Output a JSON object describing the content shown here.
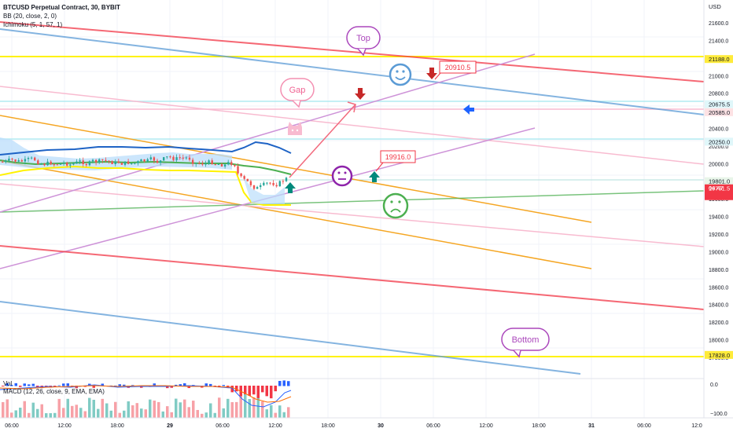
{
  "chart": {
    "symbol": "BTCUSD Perpetual Contract, 30, BYBIT",
    "bb_label": "BB (20, close, 2, 0)",
    "ichimoku_label": "Ichimoku (5, 1, 57, 1)",
    "vol_label": "Vol",
    "macd_label": "MACD (12, 26, close, 9, EMA, EMA)",
    "currency": "USD",
    "price_ticks": [
      "21600.0",
      "21400.0",
      "21200.0",
      "21000.0",
      "20800.0",
      "20600.0",
      "20400.0",
      "20200.0",
      "20000.0",
      "19800.0",
      "19600.0",
      "19400.0",
      "19200.0",
      "19000.0",
      "18800.0",
      "18600.0",
      "18400.0",
      "18200.0",
      "18000.0",
      "17800.0"
    ],
    "macd_ticks": [
      "0.0",
      "−100.0"
    ],
    "time_ticks": [
      "06:00",
      "12:00",
      "18:00",
      "29",
      "06:00",
      "12:00",
      "18:00",
      "30",
      "06:00",
      "12:00",
      "18:00",
      "31",
      "06:00",
      "12:0"
    ],
    "price_badges": [
      {
        "text": "21188.0",
        "price": 21188,
        "bg": "#ffeb3b",
        "fg": "#131722"
      },
      {
        "text": "20675.5",
        "price": 20675.5,
        "bg": "#e0f7fa",
        "fg": "#131722"
      },
      {
        "text": "20585.0",
        "price": 20585,
        "bg": "#fde2e4",
        "fg": "#131722"
      },
      {
        "text": "20250.0",
        "price": 20250,
        "bg": "#e0f7fa",
        "fg": "#131722"
      },
      {
        "text": "19801.0",
        "price": 19801,
        "bg": "#e8f5e9",
        "fg": "#131722"
      },
      {
        "text": "19791.5",
        "price": 19791.5,
        "bg": "#f23645",
        "fg": "#ffffff"
      },
      {
        "text": "17828.0",
        "price": 17828,
        "bg": "#ffeb3b",
        "fg": "#131722"
      }
    ],
    "countdown": "04:47",
    "callouts": {
      "top": "Top",
      "gap": "Gap",
      "bottom": "Bottom"
    },
    "price_labels": {
      "high": "20910.5",
      "mid": "19916.0"
    },
    "colors": {
      "red_line": "#f23645",
      "blue_line": "#5b9bd5",
      "yellow_line": "#fff200",
      "purple_line": "#ce93d8",
      "orange_line": "#f5a623",
      "pink_line": "#f8bbd0",
      "green_line": "#4caf50",
      "callout_border": "#ab47bc",
      "gap_border": "#f48fb1",
      "up_candle": "#26a69a",
      "down_candle": "#ef5350"
    }
  }
}
